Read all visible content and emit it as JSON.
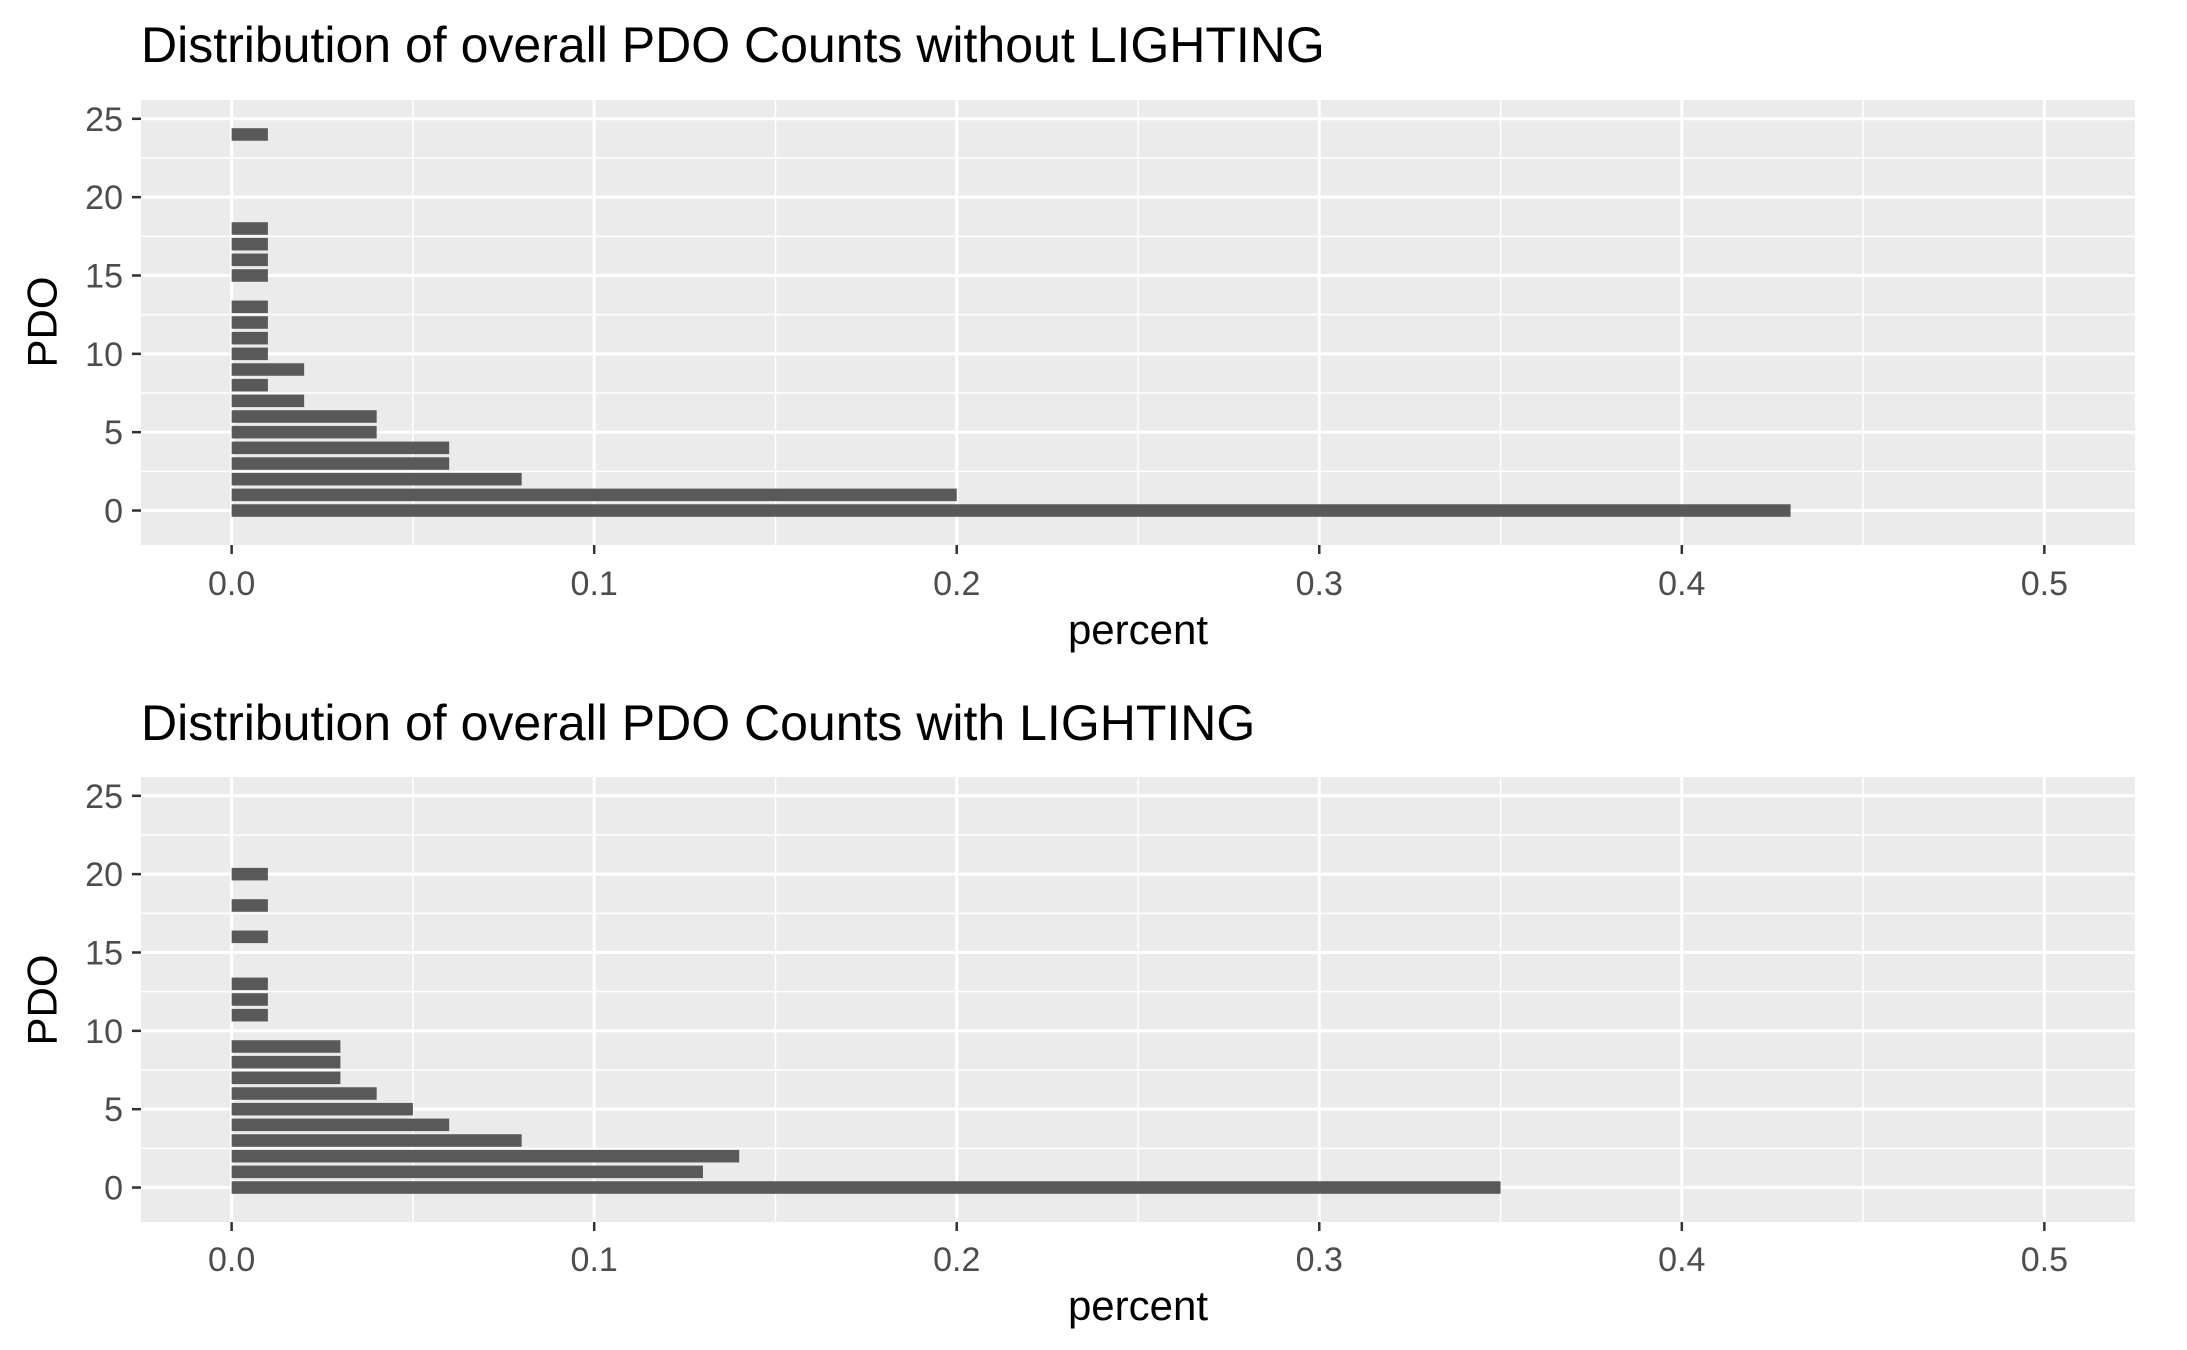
{
  "chart_data": [
    {
      "type": "bar",
      "orientation": "horizontal",
      "title": "Distribution of overall PDO Counts without LIGHTING",
      "xlabel": "percent",
      "ylabel": "PDO",
      "xlim": [
        -0.025,
        0.525
      ],
      "ylim": [
        -2.2,
        26.2
      ],
      "x_ticks": [
        0.0,
        0.1,
        0.2,
        0.3,
        0.4,
        0.5
      ],
      "x_tick_labels": [
        "0.0",
        "0.1",
        "0.2",
        "0.3",
        "0.4",
        "0.5"
      ],
      "y_ticks": [
        0,
        5,
        10,
        15,
        20,
        25
      ],
      "y_tick_labels": [
        "0",
        "5",
        "10",
        "15",
        "20",
        "25"
      ],
      "grid": true,
      "bar_color": "#595959",
      "data": [
        {
          "pdo": 0,
          "percent": 0.43
        },
        {
          "pdo": 1,
          "percent": 0.2
        },
        {
          "pdo": 2,
          "percent": 0.08
        },
        {
          "pdo": 3,
          "percent": 0.06
        },
        {
          "pdo": 4,
          "percent": 0.06
        },
        {
          "pdo": 5,
          "percent": 0.04
        },
        {
          "pdo": 6,
          "percent": 0.04
        },
        {
          "pdo": 7,
          "percent": 0.02
        },
        {
          "pdo": 8,
          "percent": 0.01
        },
        {
          "pdo": 9,
          "percent": 0.02
        },
        {
          "pdo": 10,
          "percent": 0.01
        },
        {
          "pdo": 11,
          "percent": 0.01
        },
        {
          "pdo": 12,
          "percent": 0.01
        },
        {
          "pdo": 13,
          "percent": 0.01
        },
        {
          "pdo": 15,
          "percent": 0.01
        },
        {
          "pdo": 16,
          "percent": 0.01
        },
        {
          "pdo": 17,
          "percent": 0.01
        },
        {
          "pdo": 18,
          "percent": 0.01
        },
        {
          "pdo": 24,
          "percent": 0.01
        }
      ]
    },
    {
      "type": "bar",
      "orientation": "horizontal",
      "title": "Distribution of overall PDO Counts with LIGHTING",
      "xlabel": "percent",
      "ylabel": "PDO",
      "xlim": [
        -0.025,
        0.525
      ],
      "ylim": [
        -2.2,
        26.2
      ],
      "x_ticks": [
        0.0,
        0.1,
        0.2,
        0.3,
        0.4,
        0.5
      ],
      "x_tick_labels": [
        "0.0",
        "0.1",
        "0.2",
        "0.3",
        "0.4",
        "0.5"
      ],
      "y_ticks": [
        0,
        5,
        10,
        15,
        20,
        25
      ],
      "y_tick_labels": [
        "0",
        "5",
        "10",
        "15",
        "20",
        "25"
      ],
      "grid": true,
      "bar_color": "#595959",
      "data": [
        {
          "pdo": 0,
          "percent": 0.35
        },
        {
          "pdo": 1,
          "percent": 0.13
        },
        {
          "pdo": 2,
          "percent": 0.14
        },
        {
          "pdo": 3,
          "percent": 0.08
        },
        {
          "pdo": 4,
          "percent": 0.06
        },
        {
          "pdo": 5,
          "percent": 0.05
        },
        {
          "pdo": 6,
          "percent": 0.04
        },
        {
          "pdo": 7,
          "percent": 0.03
        },
        {
          "pdo": 8,
          "percent": 0.03
        },
        {
          "pdo": 9,
          "percent": 0.03
        },
        {
          "pdo": 11,
          "percent": 0.01
        },
        {
          "pdo": 12,
          "percent": 0.01
        },
        {
          "pdo": 13,
          "percent": 0.01
        },
        {
          "pdo": 16,
          "percent": 0.01
        },
        {
          "pdo": 18,
          "percent": 0.01
        },
        {
          "pdo": 20,
          "percent": 0.01
        }
      ]
    }
  ]
}
